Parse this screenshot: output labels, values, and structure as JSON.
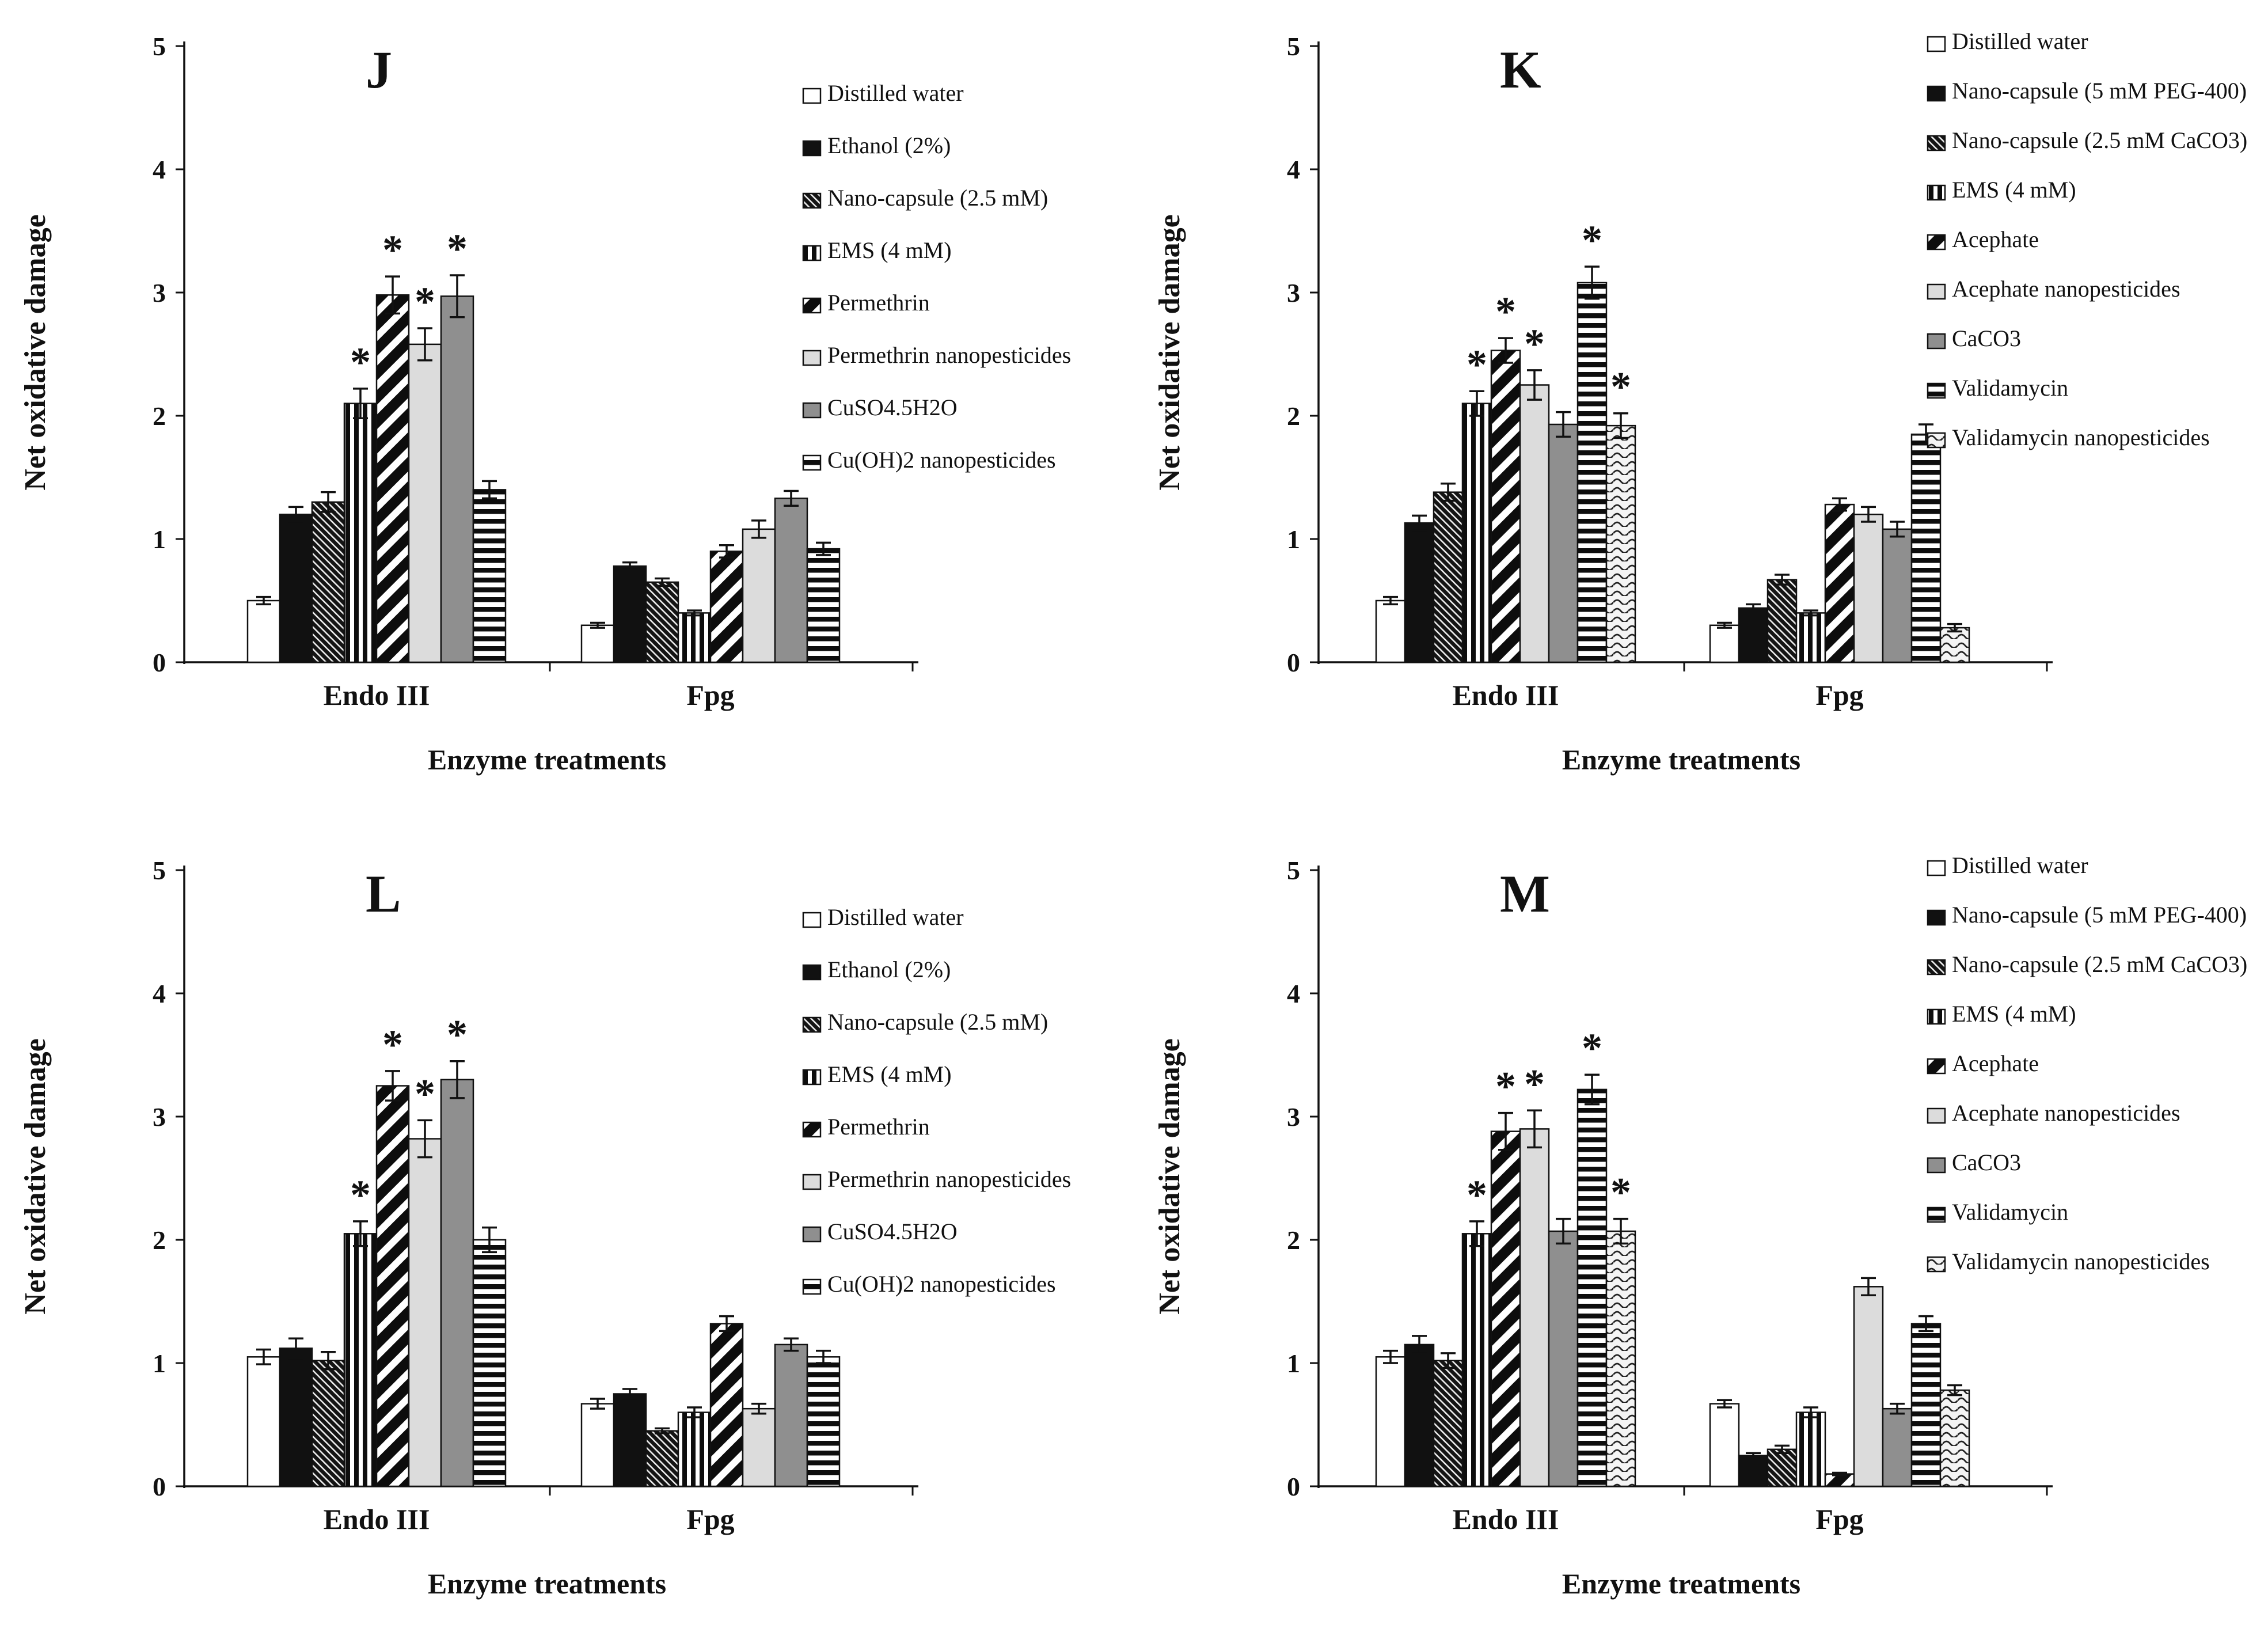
{
  "figure": {
    "background": "#ffffff",
    "ink_color": "#111111",
    "light_gray": "#dcdcdc",
    "mid_gray": "#8f8f8f"
  },
  "chart_data": [
    {
      "panel": "J",
      "type": "bar",
      "title": "J",
      "xlabel": "Enzyme treatments",
      "ylabel": "Net oxidative damage",
      "categories": [
        "Endo III",
        "Fpg"
      ],
      "ylim": [
        0,
        5
      ],
      "yticks": [
        0,
        1,
        2,
        3,
        4,
        5
      ],
      "grid": false,
      "legend_position": "right",
      "significance_marker": "*",
      "series": [
        {
          "name": "Distilled water",
          "pattern": "white",
          "values": [
            0.5,
            0.3
          ],
          "errors": [
            0.03,
            0.02
          ],
          "significant": [
            false,
            false
          ]
        },
        {
          "name": "Ethanol (2%)",
          "pattern": "black",
          "values": [
            1.2,
            0.78
          ],
          "errors": [
            0.06,
            0.03
          ],
          "significant": [
            false,
            false
          ]
        },
        {
          "name": "Nano-capsule (2.5 mM)",
          "pattern": "hatch",
          "values": [
            1.3,
            0.65
          ],
          "errors": [
            0.08,
            0.03
          ],
          "significant": [
            false,
            false
          ]
        },
        {
          "name": "EMS (4 mM)",
          "pattern": "vstripe",
          "values": [
            2.1,
            0.4
          ],
          "errors": [
            0.12,
            0.02
          ],
          "significant": [
            true,
            false
          ]
        },
        {
          "name": "Permethrin",
          "pattern": "diag",
          "values": [
            2.98,
            0.9
          ],
          "errors": [
            0.15,
            0.05
          ],
          "significant": [
            true,
            false
          ]
        },
        {
          "name": "Permethrin nanopesticides",
          "pattern": "lightgray",
          "values": [
            2.58,
            1.08
          ],
          "errors": [
            0.13,
            0.07
          ],
          "significant": [
            true,
            false
          ]
        },
        {
          "name": "CuSO4.5H2O",
          "pattern": "gray",
          "values": [
            2.97,
            1.33
          ],
          "errors": [
            0.17,
            0.06
          ],
          "significant": [
            true,
            false
          ]
        },
        {
          "name": "Cu(OH)2 nanopesticides",
          "pattern": "hstripe",
          "values": [
            1.4,
            0.92
          ],
          "errors": [
            0.07,
            0.05
          ],
          "significant": [
            false,
            false
          ]
        }
      ]
    },
    {
      "panel": "K",
      "type": "bar",
      "title": "K",
      "xlabel": "Enzyme treatments",
      "ylabel": "Net oxidative damage",
      "categories": [
        "Endo III",
        "Fpg"
      ],
      "ylim": [
        0,
        5
      ],
      "yticks": [
        0,
        1,
        2,
        3,
        4,
        5
      ],
      "grid": false,
      "legend_position": "right",
      "significance_marker": "*",
      "series": [
        {
          "name": "Distilled water",
          "pattern": "white",
          "values": [
            0.5,
            0.3
          ],
          "errors": [
            0.03,
            0.02
          ],
          "significant": [
            false,
            false
          ]
        },
        {
          "name": "Nano-capsule (5 mM PEG-400)",
          "pattern": "black",
          "values": [
            1.13,
            0.44
          ],
          "errors": [
            0.06,
            0.03
          ],
          "significant": [
            false,
            false
          ]
        },
        {
          "name": "Nano-capsule (2.5 mM CaCO3)",
          "pattern": "hatch",
          "values": [
            1.38,
            0.67
          ],
          "errors": [
            0.07,
            0.04
          ],
          "significant": [
            false,
            false
          ]
        },
        {
          "name": "EMS (4 mM)",
          "pattern": "vstripe",
          "values": [
            2.1,
            0.4
          ],
          "errors": [
            0.1,
            0.02
          ],
          "significant": [
            true,
            false
          ]
        },
        {
          "name": "Acephate",
          "pattern": "diag",
          "values": [
            2.53,
            1.28
          ],
          "errors": [
            0.1,
            0.05
          ],
          "significant": [
            true,
            false
          ]
        },
        {
          "name": "Acephate nanopesticides",
          "pattern": "lightgray",
          "values": [
            2.25,
            1.2
          ],
          "errors": [
            0.12,
            0.06
          ],
          "significant": [
            true,
            false
          ]
        },
        {
          "name": "CaCO3",
          "pattern": "gray",
          "values": [
            1.93,
            1.08
          ],
          "errors": [
            0.1,
            0.06
          ],
          "significant": [
            false,
            false
          ]
        },
        {
          "name": "Validamycin",
          "pattern": "hstripe",
          "values": [
            3.08,
            1.85
          ],
          "errors": [
            0.13,
            0.08
          ],
          "significant": [
            true,
            false
          ]
        },
        {
          "name": "Validamycin nanopesticides",
          "pattern": "wave",
          "values": [
            1.92,
            0.28
          ],
          "errors": [
            0.1,
            0.03
          ],
          "significant": [
            true,
            false
          ]
        }
      ]
    },
    {
      "panel": "L",
      "type": "bar",
      "title": "L",
      "xlabel": "Enzyme treatments",
      "ylabel": "Net oxidative damage",
      "categories": [
        "Endo III",
        "Fpg"
      ],
      "ylim": [
        0,
        5
      ],
      "yticks": [
        0,
        1,
        2,
        3,
        4,
        5
      ],
      "grid": false,
      "legend_position": "right",
      "significance_marker": "*",
      "series": [
        {
          "name": "Distilled water",
          "pattern": "white",
          "values": [
            1.05,
            0.67
          ],
          "errors": [
            0.06,
            0.04
          ],
          "significant": [
            false,
            false
          ]
        },
        {
          "name": "Ethanol (2%)",
          "pattern": "black",
          "values": [
            1.12,
            0.75
          ],
          "errors": [
            0.08,
            0.04
          ],
          "significant": [
            false,
            false
          ]
        },
        {
          "name": "Nano-capsule (2.5 mM)",
          "pattern": "hatch",
          "values": [
            1.02,
            0.45
          ],
          "errors": [
            0.07,
            0.02
          ],
          "significant": [
            false,
            false
          ]
        },
        {
          "name": "EMS (4 mM)",
          "pattern": "vstripe",
          "values": [
            2.05,
            0.6
          ],
          "errors": [
            0.1,
            0.04
          ],
          "significant": [
            true,
            false
          ]
        },
        {
          "name": "Permethrin",
          "pattern": "diag",
          "values": [
            3.25,
            1.32
          ],
          "errors": [
            0.12,
            0.06
          ],
          "significant": [
            true,
            false
          ]
        },
        {
          "name": "Permethrin nanopesticides",
          "pattern": "lightgray",
          "values": [
            2.82,
            0.63
          ],
          "errors": [
            0.15,
            0.04
          ],
          "significant": [
            true,
            false
          ]
        },
        {
          "name": "CuSO4.5H2O",
          "pattern": "gray",
          "values": [
            3.3,
            1.15
          ],
          "errors": [
            0.15,
            0.05
          ],
          "significant": [
            true,
            false
          ]
        },
        {
          "name": "Cu(OH)2 nanopesticides",
          "pattern": "hstripe",
          "values": [
            2.0,
            1.05
          ],
          "errors": [
            0.1,
            0.05
          ],
          "significant": [
            false,
            false
          ]
        }
      ]
    },
    {
      "panel": "M",
      "type": "bar",
      "title": "M",
      "xlabel": "Enzyme treatments",
      "ylabel": "Net oxidative damage",
      "categories": [
        "Endo III",
        "Fpg"
      ],
      "ylim": [
        0,
        5
      ],
      "yticks": [
        0,
        1,
        2,
        3,
        4,
        5
      ],
      "grid": false,
      "legend_position": "right",
      "significance_marker": "*",
      "series": [
        {
          "name": "Distilled water",
          "pattern": "white",
          "values": [
            1.05,
            0.67
          ],
          "errors": [
            0.05,
            0.03
          ],
          "significant": [
            false,
            false
          ]
        },
        {
          "name": "Nano-capsule (5 mM PEG-400)",
          "pattern": "black",
          "values": [
            1.15,
            0.25
          ],
          "errors": [
            0.07,
            0.02
          ],
          "significant": [
            false,
            false
          ]
        },
        {
          "name": "Nano-capsule (2.5 mM CaCO3)",
          "pattern": "hatch",
          "values": [
            1.02,
            0.3
          ],
          "errors": [
            0.06,
            0.03
          ],
          "significant": [
            false,
            false
          ]
        },
        {
          "name": "EMS (4 mM)",
          "pattern": "vstripe",
          "values": [
            2.05,
            0.6
          ],
          "errors": [
            0.1,
            0.04
          ],
          "significant": [
            true,
            false
          ]
        },
        {
          "name": "Acephate",
          "pattern": "diag",
          "values": [
            2.88,
            0.1
          ],
          "errors": [
            0.15,
            0.01
          ],
          "significant": [
            true,
            false
          ]
        },
        {
          "name": "Acephate nanopesticides",
          "pattern": "lightgray",
          "values": [
            2.9,
            1.62
          ],
          "errors": [
            0.15,
            0.07
          ],
          "significant": [
            true,
            false
          ]
        },
        {
          "name": "CaCO3",
          "pattern": "gray",
          "values": [
            2.07,
            0.63
          ],
          "errors": [
            0.1,
            0.04
          ],
          "significant": [
            false,
            false
          ]
        },
        {
          "name": "Validamycin",
          "pattern": "hstripe",
          "values": [
            3.22,
            1.32
          ],
          "errors": [
            0.12,
            0.06
          ],
          "significant": [
            true,
            false
          ]
        },
        {
          "name": "Validamycin nanopesticides",
          "pattern": "wave",
          "values": [
            2.07,
            0.78
          ],
          "errors": [
            0.1,
            0.04
          ],
          "significant": [
            true,
            false
          ]
        }
      ]
    }
  ]
}
